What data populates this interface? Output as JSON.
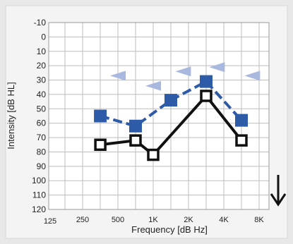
{
  "chart_data": {
    "type": "scatter",
    "title": "",
    "xlabel": "Frequency [dB Hz]",
    "ylabel": "Intensity [dB HL]",
    "x_ticks": [
      "125",
      "250",
      "500",
      "1K",
      "2K",
      "4K",
      "8K"
    ],
    "y_ticks": [
      "-10",
      "0",
      "10",
      "20",
      "30",
      "40",
      "50",
      "60",
      "70",
      "80",
      "90",
      "100",
      "110",
      "120"
    ],
    "ylim": [
      -10,
      120
    ],
    "y_inverted": true,
    "x_scale": "log",
    "grid": true,
    "series": [
      {
        "marker": "filled-square",
        "line": "dashed",
        "color": "#2e5ba8",
        "x": [
          354,
          707,
          1414,
          2828,
          5657
        ],
        "y": [
          55,
          62,
          44,
          31,
          58
        ]
      },
      {
        "marker": "open-square",
        "line": "solid",
        "color": "#111111",
        "x": [
          354,
          707,
          1000,
          2828,
          5657
        ],
        "y": [
          75,
          72,
          82,
          41,
          72
        ]
      },
      {
        "marker": "left-triangle",
        "line": "none",
        "color": "#a9b8de",
        "x": [
          500,
          1000,
          1800,
          3500,
          7000
        ],
        "y": [
          27,
          34,
          24,
          21,
          27
        ]
      }
    ],
    "annotations": [
      {
        "type": "down-arrow",
        "meaning": "no response"
      }
    ],
    "colors": {
      "background": "#e8e8e8",
      "plot_area": "#ffffff",
      "grid": "#bdbdbd"
    }
  }
}
